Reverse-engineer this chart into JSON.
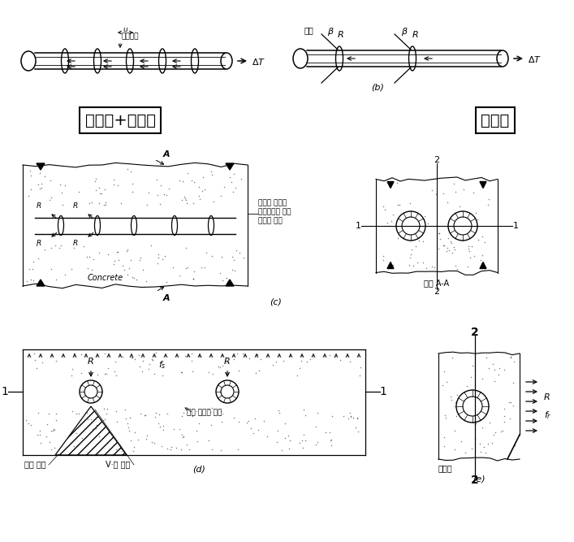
{
  "bg_color": "#ffffff",
  "label_a_box": "마찰력+부착력",
  "label_b_box": "지압력",
  "text_부착응력": "부착응력",
  "text_마디": "마디",
  "text_방사선": "방사선 방향의",
  "text_콘크리트": "콘크리트에 대한",
  "text_철근": "철근의 반력",
  "text_단면": "단면 A-A",
  "text_측면": "측면·뜯어짐 균열.",
  "text_균열시작": "균열 시작",
  "text_V형": "V·형 파괴",
  "text_균열면": "균열면",
  "label_b_italic": "(b)",
  "label_c_italic": "(c)",
  "label_d_italic": "(d)",
  "label_e_italic": "(e)"
}
